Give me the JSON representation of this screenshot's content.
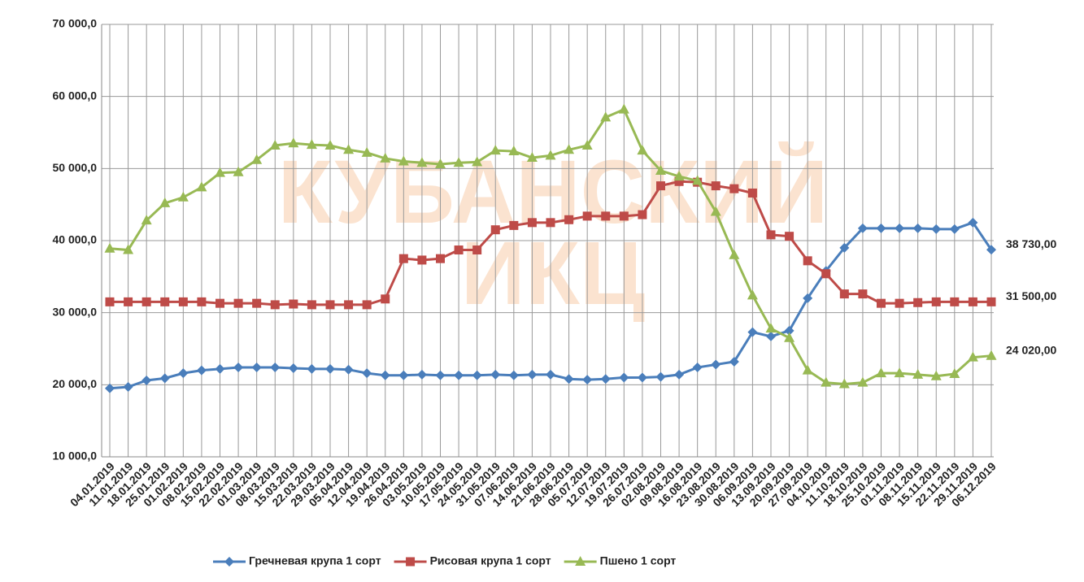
{
  "chart_data": {
    "type": "line",
    "watermark": [
      "КУБАНСКИЙ",
      "ИКЦ"
    ],
    "categories": [
      "04.01.2019",
      "11.01.2019",
      "18.01.2019",
      "25.01.2019",
      "01.02.2019",
      "08.02.2019",
      "15.02.2019",
      "22.02.2019",
      "01.03.2019",
      "08.03.2019",
      "15.03.2019",
      "22.03.2019",
      "29.03.2019",
      "05.04.2019",
      "12.04.2019",
      "19.04.2019",
      "26.04.2019",
      "03.05.2019",
      "10.05.2019",
      "17.05.2019",
      "24.05.2019",
      "31.05.2019",
      "07.06.2019",
      "14.06.2019",
      "21.06.2019",
      "28.06.2019",
      "05.07.2019",
      "12.07.2019",
      "19.07.2019",
      "26.07.2019",
      "02.08.2019",
      "09.08.2019",
      "16.08.2019",
      "23.08.2019",
      "30.08.2019",
      "06.09.2019",
      "13.09.2019",
      "20.09.2019",
      "27.09.2019",
      "04.10.2019",
      "11.10.2019",
      "18.10.2019",
      "25.10.2019",
      "01.11.2019",
      "08.11.2019",
      "15.11.2019",
      "22.11.2019",
      "29.11.2019",
      "06.12.2019"
    ],
    "series": [
      {
        "name": "Гречневая крупа 1 сорт",
        "color": "#4a7ebb",
        "marker": "diamond",
        "values": [
          19500,
          19700,
          20600,
          20900,
          21600,
          22000,
          22200,
          22400,
          22400,
          22400,
          22300,
          22200,
          22200,
          22100,
          21600,
          21300,
          21300,
          21400,
          21300,
          21300,
          21300,
          21400,
          21300,
          21400,
          21400,
          20800,
          20700,
          20800,
          21000,
          21000,
          21100,
          21400,
          22400,
          22800,
          23200,
          27300,
          26700,
          27500,
          32000,
          35800,
          39000,
          41700,
          41700,
          41700,
          41700,
          41600,
          41600,
          42500,
          38730
        ],
        "value_labels": [
          null,
          null,
          null,
          null,
          null,
          null,
          null,
          null,
          null,
          null,
          null,
          null,
          null,
          null,
          null,
          null,
          null,
          null,
          null,
          null,
          null,
          null,
          null,
          null,
          null,
          null,
          null,
          null,
          null,
          null,
          null,
          null,
          null,
          null,
          null,
          null,
          null,
          null,
          null,
          null,
          null,
          null,
          null,
          null,
          null,
          null,
          null,
          null,
          "38 730,00"
        ]
      },
      {
        "name": "Рисовая крупа 1 сорт",
        "color": "#be4b48",
        "marker": "square",
        "values": [
          31500,
          31500,
          31500,
          31500,
          31500,
          31500,
          31300,
          31300,
          31300,
          31100,
          31200,
          31100,
          31100,
          31100,
          31100,
          31900,
          37500,
          37300,
          37500,
          38700,
          38700,
          41500,
          42100,
          42500,
          42500,
          42900,
          43400,
          43400,
          43400,
          43600,
          47600,
          48200,
          48100,
          47600,
          47200,
          46600,
          40800,
          40600,
          37200,
          35400,
          32600,
          32600,
          31300,
          31300,
          31400,
          31500,
          31500,
          31500,
          31500
        ],
        "value_labels": [
          null,
          null,
          null,
          null,
          null,
          null,
          null,
          null,
          null,
          null,
          null,
          null,
          null,
          null,
          null,
          null,
          null,
          null,
          null,
          null,
          null,
          null,
          null,
          null,
          null,
          null,
          null,
          null,
          null,
          null,
          null,
          null,
          null,
          null,
          null,
          null,
          null,
          null,
          null,
          null,
          null,
          null,
          null,
          null,
          null,
          null,
          null,
          null,
          "31 500,00"
        ]
      },
      {
        "name": "Пшено 1 сорт",
        "color": "#98b954",
        "marker": "triangle",
        "values": [
          38900,
          38700,
          42800,
          45200,
          46000,
          47400,
          49400,
          49500,
          51200,
          53200,
          53500,
          53300,
          53200,
          52600,
          52200,
          51400,
          51000,
          50800,
          50600,
          50800,
          50900,
          52500,
          52400,
          51500,
          51800,
          52600,
          53200,
          57100,
          58200,
          52500,
          49700,
          48900,
          48300,
          44000,
          38000,
          32400,
          27800,
          26500,
          22000,
          20300,
          20100,
          20300,
          21600,
          21600,
          21400,
          21200,
          21500,
          23800,
          24020
        ],
        "value_labels": [
          null,
          null,
          null,
          null,
          null,
          null,
          null,
          null,
          null,
          null,
          null,
          null,
          null,
          null,
          null,
          null,
          null,
          null,
          null,
          null,
          null,
          null,
          null,
          null,
          null,
          null,
          null,
          null,
          null,
          null,
          null,
          null,
          null,
          null,
          null,
          null,
          null,
          null,
          null,
          null,
          null,
          null,
          null,
          null,
          null,
          null,
          null,
          null,
          "24 020,00"
        ]
      }
    ],
    "ylim": [
      10000,
      70000
    ],
    "yticks": [
      {
        "value": 10000,
        "label": "10 000,0"
      },
      {
        "value": 20000,
        "label": "20 000,0"
      },
      {
        "value": 30000,
        "label": "30 000,0"
      },
      {
        "value": 40000,
        "label": "40 000,0"
      },
      {
        "value": 50000,
        "label": "50 000,0"
      },
      {
        "value": 60000,
        "label": "60 000,0"
      },
      {
        "value": 70000,
        "label": "70 000,0"
      }
    ],
    "grid": true,
    "legend": "bottom"
  }
}
